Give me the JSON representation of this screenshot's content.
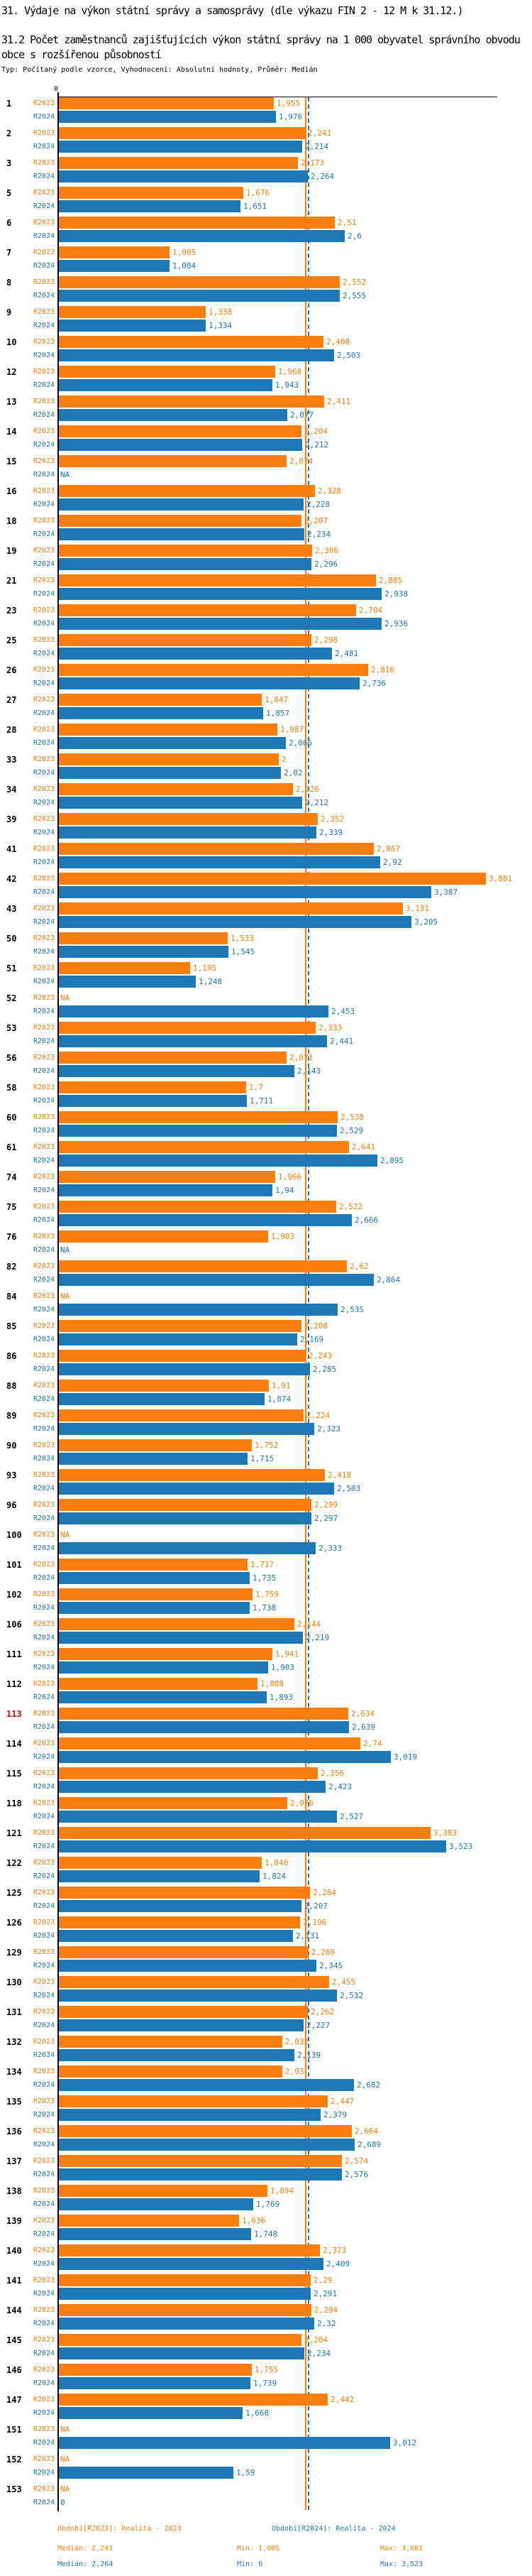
{
  "title": "31. Výdaje na výkon státní správy a samosprávy (dle výkazu FIN 2 - 12 M k 31.12.)",
  "subtitle": "31.2 Počet zaměstnanců zajišťujících výkon státní správy na 1 000 obyvatel správního obvodu obce s rozšířenou působností",
  "meta": "Typ: Počítaný podle vzorce, Vyhodnocení: Absolutní hodnoty, Průměr: Medián",
  "colors": {
    "r2023": "#FB7E0E",
    "r2024": "#1F77B4",
    "highlight": "#DD0000",
    "axis": "#000000"
  },
  "axis": {
    "origin_label": "0"
  },
  "na_label": "NA",
  "chart_data": {
    "type": "bar",
    "orientation": "horizontal",
    "series_names": [
      "R2023",
      "R2024"
    ],
    "xlim": [
      0,
      4
    ],
    "grid": false,
    "median_2023": 2.241,
    "median_2024": 2.264,
    "highlighted_row": "113",
    "rows": [
      {
        "id": "1",
        "r2023": "1,955",
        "r2024": "1,976"
      },
      {
        "id": "2",
        "r2023": "2,241",
        "r2024": "2,214"
      },
      {
        "id": "3",
        "r2023": "2,173",
        "r2024": "2,264"
      },
      {
        "id": "5",
        "r2023": "1,676",
        "r2024": "1,651"
      },
      {
        "id": "6",
        "r2023": "2,51",
        "r2024": "2,6"
      },
      {
        "id": "7",
        "r2023": "1,005",
        "r2024": "1,004"
      },
      {
        "id": "8",
        "r2023": "2,552",
        "r2024": "2,555"
      },
      {
        "id": "9",
        "r2023": "1,338",
        "r2024": "1,334"
      },
      {
        "id": "10",
        "r2023": "2,408",
        "r2024": "2,503"
      },
      {
        "id": "12",
        "r2023": "1,968",
        "r2024": "1,943"
      },
      {
        "id": "13",
        "r2023": "2,411",
        "r2024": "2,077"
      },
      {
        "id": "14",
        "r2023": "2,204",
        "r2024": "2,212"
      },
      {
        "id": "15",
        "r2023": "2,074",
        "r2024": "NA"
      },
      {
        "id": "16",
        "r2023": "2,328",
        "r2024": "2,228"
      },
      {
        "id": "18",
        "r2023": "2,207",
        "r2024": "2,234"
      },
      {
        "id": "19",
        "r2023": "2,306",
        "r2024": "2,296"
      },
      {
        "id": "21",
        "r2023": "2,885",
        "r2024": "2,938"
      },
      {
        "id": "23",
        "r2023": "2,704",
        "r2024": "2,936"
      },
      {
        "id": "25",
        "r2023": "2,298",
        "r2024": "2,481"
      },
      {
        "id": "26",
        "r2023": "2,816",
        "r2024": "2,736"
      },
      {
        "id": "27",
        "r2023": "1,847",
        "r2024": "1,857"
      },
      {
        "id": "28",
        "r2023": "1,987",
        "r2024": "2,066"
      },
      {
        "id": "33",
        "r2023": "2",
        "r2024": "2,02"
      },
      {
        "id": "34",
        "r2023": "2,126",
        "r2024": "2,212"
      },
      {
        "id": "39",
        "r2023": "2,352",
        "r2024": "2,339"
      },
      {
        "id": "41",
        "r2023": "2,867",
        "r2024": "2,92"
      },
      {
        "id": "42",
        "r2023": "3,881",
        "r2024": "3,387"
      },
      {
        "id": "43",
        "r2023": "3,131",
        "r2024": "3,205"
      },
      {
        "id": "50",
        "r2023": "1,533",
        "r2024": "1,545"
      },
      {
        "id": "51",
        "r2023": "1,195",
        "r2024": "1,248"
      },
      {
        "id": "52",
        "r2023": "NA",
        "r2024": "2,453"
      },
      {
        "id": "53",
        "r2023": "2,333",
        "r2024": "2,441"
      },
      {
        "id": "56",
        "r2023": "2,073",
        "r2024": "2,143"
      },
      {
        "id": "58",
        "r2023": "1,7",
        "r2024": "1,711"
      },
      {
        "id": "60",
        "r2023": "2,538",
        "r2024": "2,529"
      },
      {
        "id": "61",
        "r2023": "2,641",
        "r2024": "2,895"
      },
      {
        "id": "74",
        "r2023": "1,966",
        "r2024": "1,94"
      },
      {
        "id": "75",
        "r2023": "2,522",
        "r2024": "2,666"
      },
      {
        "id": "76",
        "r2023": "1,903",
        "r2024": "NA"
      },
      {
        "id": "82",
        "r2023": "2,62",
        "r2024": "2,864"
      },
      {
        "id": "84",
        "r2023": "NA",
        "r2024": "2,535"
      },
      {
        "id": "85",
        "r2023": "2,208",
        "r2024": "2,169"
      },
      {
        "id": "86",
        "r2023": "2,243",
        "r2024": "2,285"
      },
      {
        "id": "88",
        "r2023": "1,91",
        "r2024": "1,874"
      },
      {
        "id": "89",
        "r2023": "2,224",
        "r2024": "2,323"
      },
      {
        "id": "90",
        "r2023": "1,752",
        "r2024": "1,715"
      },
      {
        "id": "93",
        "r2023": "2,418",
        "r2024": "2,503"
      },
      {
        "id": "96",
        "r2023": "2,299",
        "r2024": "2,297"
      },
      {
        "id": "100",
        "r2023": "NA",
        "r2024": "2,333"
      },
      {
        "id": "101",
        "r2023": "1,717",
        "r2024": "1,735"
      },
      {
        "id": "102",
        "r2023": "1,759",
        "r2024": "1,738"
      },
      {
        "id": "106",
        "r2023": "2,144",
        "r2024": "2,219"
      },
      {
        "id": "111",
        "r2023": "1,941",
        "r2024": "1,903"
      },
      {
        "id": "112",
        "r2023": "1,808",
        "r2024": "1,893"
      },
      {
        "id": "113",
        "r2023": "2,634",
        "r2024": "2,639"
      },
      {
        "id": "114",
        "r2023": "2,74",
        "r2024": "3,019"
      },
      {
        "id": "115",
        "r2023": "2,356",
        "r2024": "2,423"
      },
      {
        "id": "118",
        "r2023": "2,076",
        "r2024": "2,527"
      },
      {
        "id": "121",
        "r2023": "3,383",
        "r2024": "3,523"
      },
      {
        "id": "122",
        "r2023": "1,848",
        "r2024": "1,824"
      },
      {
        "id": "125",
        "r2023": "2,284",
        "r2024": "2,207"
      },
      {
        "id": "126",
        "r2023": "2,196",
        "r2024": "2,131"
      },
      {
        "id": "129",
        "r2023": "2,269",
        "r2024": "2,345"
      },
      {
        "id": "130",
        "r2023": "2,455",
        "r2024": "2,532"
      },
      {
        "id": "131",
        "r2023": "2,262",
        "r2024": "2,227"
      },
      {
        "id": "132",
        "r2023": "2,032",
        "r2024": "2,139"
      },
      {
        "id": "134",
        "r2023": "2,03",
        "r2024": "2,682"
      },
      {
        "id": "135",
        "r2023": "2,447",
        "r2024": "2,379"
      },
      {
        "id": "136",
        "r2023": "2,664",
        "r2024": "2,689"
      },
      {
        "id": "137",
        "r2023": "2,574",
        "r2024": "2,576"
      },
      {
        "id": "138",
        "r2023": "1,894",
        "r2024": "1,769"
      },
      {
        "id": "139",
        "r2023": "1,636",
        "r2024": "1,748"
      },
      {
        "id": "140",
        "r2023": "2,373",
        "r2024": "2,409"
      },
      {
        "id": "141",
        "r2023": "2,29",
        "r2024": "2,291"
      },
      {
        "id": "144",
        "r2023": "2,294",
        "r2024": "2,32"
      },
      {
        "id": "145",
        "r2023": "2,204",
        "r2024": "2,234"
      },
      {
        "id": "146",
        "r2023": "1,755",
        "r2024": "1,739"
      },
      {
        "id": "147",
        "r2023": "2,442",
        "r2024": "1,668"
      },
      {
        "id": "151",
        "r2023": "NA",
        "r2024": "3,012"
      },
      {
        "id": "152",
        "r2023": "NA",
        "r2024": "1,59"
      },
      {
        "id": "153",
        "r2023": "NA",
        "r2024": "0"
      }
    ]
  },
  "footer": {
    "legend_2023": "Období[R2023]: Realita - 2023",
    "legend_2024": "Období[R2024]: Realita - 2024",
    "stats_2023": {
      "median": "Medián: 2,241",
      "min": "Min: 1,005",
      "max": "Max: 3,881"
    },
    "stats_2024": {
      "median": "Medián: 2,264",
      "min": "Min: 0",
      "max": "Max: 3,523"
    }
  }
}
